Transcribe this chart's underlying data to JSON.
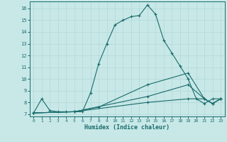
{
  "title": "",
  "xlabel": "Humidex (Indice chaleur)",
  "ylabel": "",
  "background_color": "#c8e8e8",
  "line_color": "#1a6b6b",
  "grid_color": "#b0d8d8",
  "xlim": [
    -0.5,
    23.5
  ],
  "ylim": [
    6.8,
    16.6
  ],
  "x_ticks": [
    0,
    1,
    2,
    3,
    4,
    5,
    6,
    7,
    8,
    9,
    10,
    11,
    12,
    13,
    14,
    15,
    16,
    17,
    18,
    19,
    20,
    21,
    22,
    23
  ],
  "y_ticks": [
    7,
    8,
    9,
    10,
    11,
    12,
    13,
    14,
    15,
    16
  ],
  "series": [
    {
      "x": [
        0,
        1,
        2,
        3,
        4,
        5,
        6,
        7,
        8,
        9,
        10,
        11,
        12,
        13,
        14,
        15,
        16,
        17,
        18,
        19,
        20,
        21,
        22,
        23
      ],
      "y": [
        7.1,
        8.3,
        7.3,
        7.2,
        7.2,
        7.2,
        7.2,
        8.8,
        11.3,
        13.0,
        14.6,
        15.0,
        15.3,
        15.4,
        16.3,
        15.5,
        13.3,
        12.2,
        11.1,
        10.0,
        8.3,
        7.9,
        8.3,
        8.3
      ]
    },
    {
      "x": [
        0,
        5,
        8,
        14,
        19,
        21,
        22,
        23
      ],
      "y": [
        7.1,
        7.2,
        7.6,
        9.5,
        10.5,
        8.3,
        7.9,
        8.3
      ]
    },
    {
      "x": [
        0,
        5,
        14,
        19,
        21,
        22,
        23
      ],
      "y": [
        7.1,
        7.2,
        8.5,
        9.5,
        8.3,
        7.9,
        8.3
      ]
    },
    {
      "x": [
        0,
        5,
        14,
        19,
        21,
        22,
        23
      ],
      "y": [
        7.1,
        7.2,
        8.0,
        8.3,
        8.3,
        7.9,
        8.3
      ]
    }
  ]
}
